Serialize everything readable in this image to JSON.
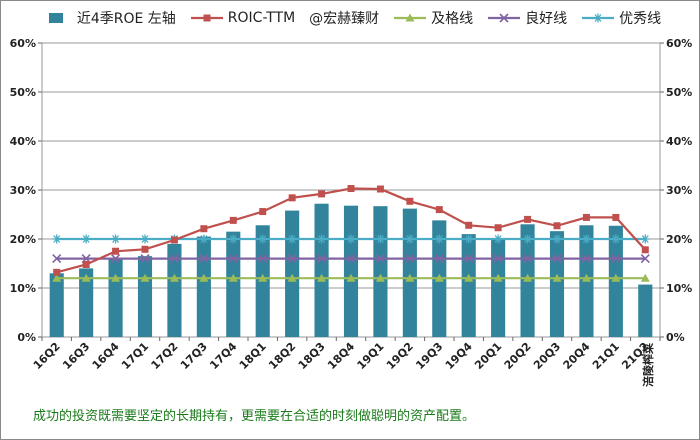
{
  "chart_data": {
    "type": "bar+line",
    "categories": [
      "16Q2",
      "16Q3",
      "16Q4",
      "17Q1",
      "17Q2",
      "17Q3",
      "17Q4",
      "18Q1",
      "18Q2",
      "18Q3",
      "18Q4",
      "19Q1",
      "19Q2",
      "19Q3",
      "19Q4",
      "20Q1",
      "20Q2",
      "20Q3",
      "20Q4",
      "21Q1",
      "21Q2"
    ],
    "series": [
      {
        "name": "近4季ROE 左轴",
        "kind": "bar",
        "color": "#31849b",
        "values": [
          13.0,
          14.0,
          16.2,
          16.5,
          19.0,
          20.5,
          21.5,
          22.8,
          25.8,
          27.2,
          26.8,
          26.7,
          26.2,
          23.8,
          21.0,
          20.2,
          23.0,
          21.6,
          22.8,
          22.7,
          10.7
        ]
      },
      {
        "name": "ROIC-TTM",
        "kind": "line",
        "color": "#c0504d",
        "marker": "square",
        "values": [
          13.2,
          14.8,
          17.5,
          17.9,
          19.8,
          22.1,
          23.8,
          25.6,
          28.4,
          29.2,
          30.3,
          30.2,
          27.7,
          26.0,
          22.8,
          22.3,
          24.0,
          22.7,
          24.4,
          24.4,
          17.8
        ]
      },
      {
        "name": "及格线",
        "kind": "line",
        "color": "#9bbb59",
        "marker": "triangle",
        "values": [
          12,
          12,
          12,
          12,
          12,
          12,
          12,
          12,
          12,
          12,
          12,
          12,
          12,
          12,
          12,
          12,
          12,
          12,
          12,
          12,
          12
        ]
      },
      {
        "name": "良好线",
        "kind": "line",
        "color": "#8064a2",
        "marker": "x",
        "values": [
          16,
          16,
          16,
          16,
          16,
          16,
          16,
          16,
          16,
          16,
          16,
          16,
          16,
          16,
          16,
          16,
          16,
          16,
          16,
          16,
          16
        ]
      },
      {
        "name": "优秀线",
        "kind": "line",
        "color": "#4bacc6",
        "marker": "star",
        "values": [
          20,
          20,
          20,
          20,
          20,
          20,
          20,
          20,
          20,
          20,
          20,
          20,
          20,
          20,
          20,
          20,
          20,
          20,
          20,
          20,
          20
        ]
      }
    ],
    "watermark": "@宏赫臻财",
    "company_label": "涪陵榨菜",
    "y_ticks": [
      "0%",
      "10%",
      "20%",
      "30%",
      "40%",
      "50%",
      "60%"
    ],
    "ylim": [
      0,
      60
    ],
    "grid": true,
    "legend_position": "top",
    "footnote": "成功的投资既需要坚定的长期持有，更需要在合适的时刻做聪明的资产配置。"
  }
}
